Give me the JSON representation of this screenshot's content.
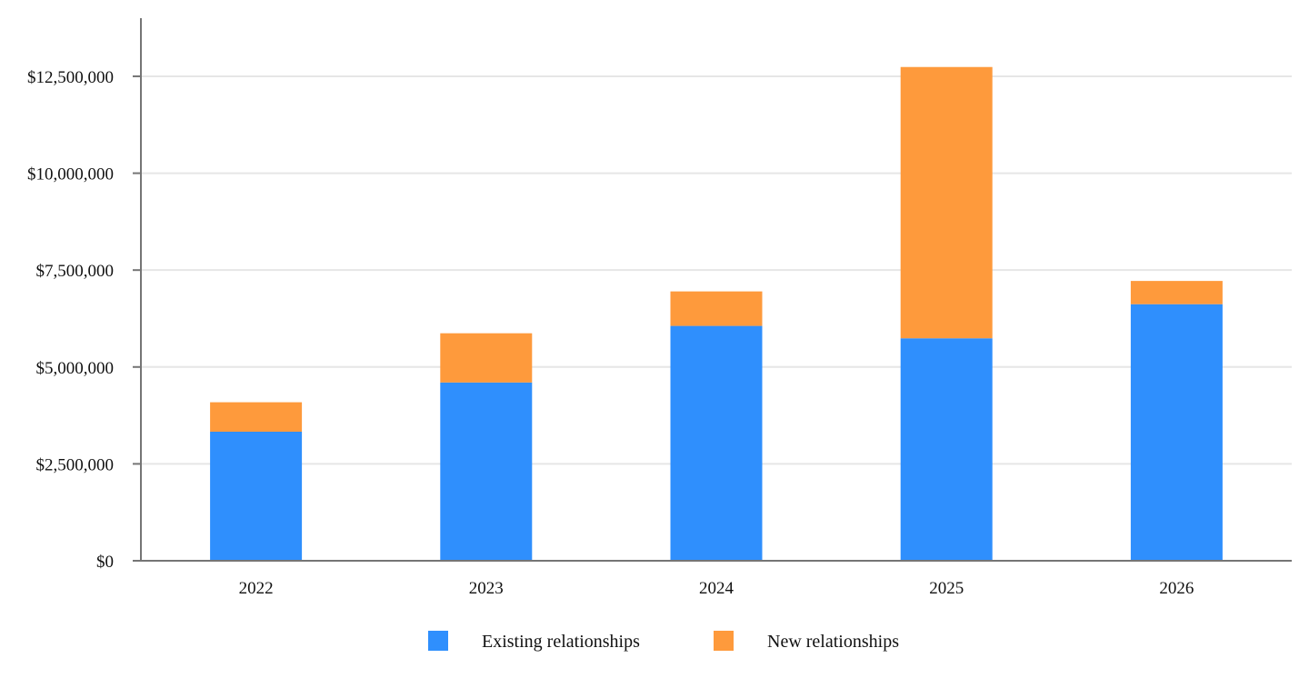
{
  "chart_data": {
    "type": "bar",
    "stacked": true,
    "categories": [
      "2022",
      "2023",
      "2024",
      "2025",
      "2026"
    ],
    "series": [
      {
        "name": "Existing relationships",
        "color": "#2F8FFD",
        "values": [
          3330000,
          4600000,
          6060000,
          5740000,
          6620000
        ]
      },
      {
        "name": "New relationships",
        "color": "#FE9A3C",
        "values": [
          760000,
          1270000,
          890000,
          7000000,
          600000
        ]
      }
    ],
    "ylim": [
      0,
      14000000
    ],
    "yticks": [
      0,
      2500000,
      5000000,
      7500000,
      10000000,
      12500000
    ],
    "ytick_labels": [
      "$0",
      "$2,500,000",
      "$5,000,000",
      "$7,500,000",
      "$10,000,000",
      "$12,500,000"
    ],
    "grid": true,
    "legend_position": "bottom-center",
    "title": "",
    "xlabel": "",
    "ylabel": ""
  }
}
